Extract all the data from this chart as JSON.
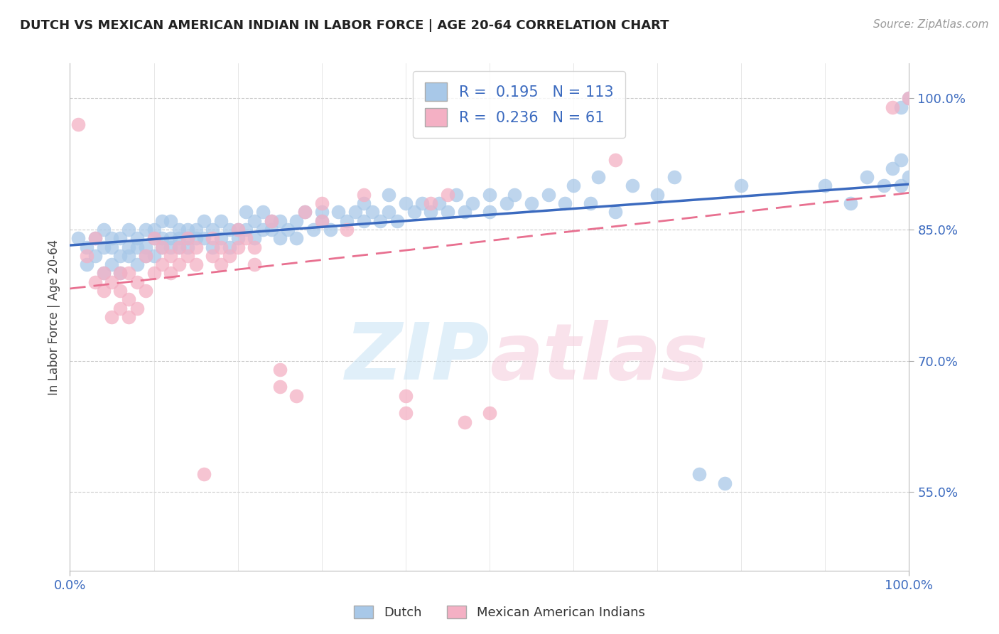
{
  "title": "DUTCH VS MEXICAN AMERICAN INDIAN IN LABOR FORCE | AGE 20-64 CORRELATION CHART",
  "source": "Source: ZipAtlas.com",
  "ylabel": "In Labor Force | Age 20-64",
  "xlim": [
    0.0,
    1.0
  ],
  "ylim": [
    0.46,
    1.04
  ],
  "yticks": [
    0.55,
    0.7,
    0.85,
    1.0
  ],
  "ytick_labels": [
    "55.0%",
    "70.0%",
    "85.0%",
    "100.0%"
  ],
  "xtick_labels": [
    "0.0%",
    "100.0%"
  ],
  "dutch_R": 0.195,
  "dutch_N": 113,
  "mexican_R": 0.236,
  "mexican_N": 61,
  "dutch_color": "#a8c8e8",
  "mexican_color": "#f4b0c4",
  "dutch_line_color": "#3b6abf",
  "mexican_line_color": "#e87090",
  "legend_R_color": "#3b6abf",
  "dutch_points": [
    [
      0.01,
      0.84
    ],
    [
      0.02,
      0.81
    ],
    [
      0.02,
      0.83
    ],
    [
      0.03,
      0.82
    ],
    [
      0.03,
      0.84
    ],
    [
      0.04,
      0.8
    ],
    [
      0.04,
      0.83
    ],
    [
      0.04,
      0.85
    ],
    [
      0.05,
      0.81
    ],
    [
      0.05,
      0.83
    ],
    [
      0.05,
      0.84
    ],
    [
      0.06,
      0.8
    ],
    [
      0.06,
      0.82
    ],
    [
      0.06,
      0.84
    ],
    [
      0.07,
      0.82
    ],
    [
      0.07,
      0.83
    ],
    [
      0.07,
      0.85
    ],
    [
      0.08,
      0.81
    ],
    [
      0.08,
      0.83
    ],
    [
      0.08,
      0.84
    ],
    [
      0.09,
      0.82
    ],
    [
      0.09,
      0.83
    ],
    [
      0.09,
      0.85
    ],
    [
      0.1,
      0.82
    ],
    [
      0.1,
      0.84
    ],
    [
      0.1,
      0.85
    ],
    [
      0.11,
      0.83
    ],
    [
      0.11,
      0.84
    ],
    [
      0.11,
      0.86
    ],
    [
      0.12,
      0.83
    ],
    [
      0.12,
      0.84
    ],
    [
      0.12,
      0.86
    ],
    [
      0.13,
      0.84
    ],
    [
      0.13,
      0.85
    ],
    [
      0.13,
      0.83
    ],
    [
      0.14,
      0.84
    ],
    [
      0.14,
      0.85
    ],
    [
      0.14,
      0.83
    ],
    [
      0.15,
      0.85
    ],
    [
      0.15,
      0.84
    ],
    [
      0.16,
      0.84
    ],
    [
      0.16,
      0.86
    ],
    [
      0.17,
      0.83
    ],
    [
      0.17,
      0.85
    ],
    [
      0.18,
      0.84
    ],
    [
      0.18,
      0.86
    ],
    [
      0.19,
      0.85
    ],
    [
      0.19,
      0.83
    ],
    [
      0.2,
      0.85
    ],
    [
      0.2,
      0.84
    ],
    [
      0.21,
      0.85
    ],
    [
      0.21,
      0.87
    ],
    [
      0.22,
      0.84
    ],
    [
      0.22,
      0.86
    ],
    [
      0.23,
      0.85
    ],
    [
      0.23,
      0.87
    ],
    [
      0.24,
      0.85
    ],
    [
      0.24,
      0.86
    ],
    [
      0.25,
      0.86
    ],
    [
      0.25,
      0.84
    ],
    [
      0.26,
      0.85
    ],
    [
      0.27,
      0.86
    ],
    [
      0.27,
      0.84
    ],
    [
      0.28,
      0.87
    ],
    [
      0.29,
      0.85
    ],
    [
      0.3,
      0.86
    ],
    [
      0.3,
      0.87
    ],
    [
      0.31,
      0.85
    ],
    [
      0.32,
      0.87
    ],
    [
      0.33,
      0.86
    ],
    [
      0.34,
      0.87
    ],
    [
      0.35,
      0.86
    ],
    [
      0.35,
      0.88
    ],
    [
      0.36,
      0.87
    ],
    [
      0.37,
      0.86
    ],
    [
      0.38,
      0.87
    ],
    [
      0.38,
      0.89
    ],
    [
      0.39,
      0.86
    ],
    [
      0.4,
      0.88
    ],
    [
      0.41,
      0.87
    ],
    [
      0.42,
      0.88
    ],
    [
      0.43,
      0.87
    ],
    [
      0.44,
      0.88
    ],
    [
      0.45,
      0.87
    ],
    [
      0.46,
      0.89
    ],
    [
      0.47,
      0.87
    ],
    [
      0.48,
      0.88
    ],
    [
      0.5,
      0.89
    ],
    [
      0.5,
      0.87
    ],
    [
      0.52,
      0.88
    ],
    [
      0.53,
      0.89
    ],
    [
      0.55,
      0.88
    ],
    [
      0.57,
      0.89
    ],
    [
      0.59,
      0.88
    ],
    [
      0.6,
      0.9
    ],
    [
      0.62,
      0.88
    ],
    [
      0.63,
      0.91
    ],
    [
      0.65,
      0.87
    ],
    [
      0.67,
      0.9
    ],
    [
      0.7,
      0.89
    ],
    [
      0.72,
      0.91
    ],
    [
      0.75,
      0.57
    ],
    [
      0.78,
      0.56
    ],
    [
      0.8,
      0.9
    ],
    [
      0.9,
      0.9
    ],
    [
      0.93,
      0.88
    ],
    [
      0.95,
      0.91
    ],
    [
      0.97,
      0.9
    ],
    [
      0.98,
      0.92
    ],
    [
      0.99,
      0.9
    ],
    [
      0.99,
      0.93
    ],
    [
      1.0,
      0.91
    ],
    [
      1.0,
      1.0
    ],
    [
      0.99,
      0.99
    ]
  ],
  "mexican_points": [
    [
      0.01,
      0.97
    ],
    [
      0.02,
      0.82
    ],
    [
      0.03,
      0.84
    ],
    [
      0.03,
      0.79
    ],
    [
      0.04,
      0.8
    ],
    [
      0.04,
      0.78
    ],
    [
      0.05,
      0.79
    ],
    [
      0.05,
      0.75
    ],
    [
      0.06,
      0.8
    ],
    [
      0.06,
      0.78
    ],
    [
      0.06,
      0.76
    ],
    [
      0.07,
      0.8
    ],
    [
      0.07,
      0.77
    ],
    [
      0.07,
      0.75
    ],
    [
      0.08,
      0.79
    ],
    [
      0.08,
      0.76
    ],
    [
      0.09,
      0.82
    ],
    [
      0.09,
      0.78
    ],
    [
      0.1,
      0.8
    ],
    [
      0.1,
      0.84
    ],
    [
      0.11,
      0.83
    ],
    [
      0.11,
      0.81
    ],
    [
      0.12,
      0.82
    ],
    [
      0.12,
      0.8
    ],
    [
      0.13,
      0.83
    ],
    [
      0.13,
      0.81
    ],
    [
      0.14,
      0.84
    ],
    [
      0.14,
      0.82
    ],
    [
      0.15,
      0.83
    ],
    [
      0.15,
      0.81
    ],
    [
      0.16,
      0.57
    ],
    [
      0.17,
      0.84
    ],
    [
      0.17,
      0.82
    ],
    [
      0.18,
      0.83
    ],
    [
      0.18,
      0.81
    ],
    [
      0.19,
      0.82
    ],
    [
      0.2,
      0.85
    ],
    [
      0.2,
      0.83
    ],
    [
      0.21,
      0.84
    ],
    [
      0.22,
      0.83
    ],
    [
      0.22,
      0.81
    ],
    [
      0.24,
      0.86
    ],
    [
      0.25,
      0.69
    ],
    [
      0.25,
      0.67
    ],
    [
      0.27,
      0.66
    ],
    [
      0.28,
      0.87
    ],
    [
      0.3,
      0.88
    ],
    [
      0.3,
      0.86
    ],
    [
      0.33,
      0.85
    ],
    [
      0.35,
      0.89
    ],
    [
      0.4,
      0.66
    ],
    [
      0.4,
      0.64
    ],
    [
      0.43,
      0.88
    ],
    [
      0.45,
      0.89
    ],
    [
      0.47,
      0.63
    ],
    [
      0.5,
      0.64
    ],
    [
      0.65,
      0.93
    ],
    [
      0.98,
      0.99
    ],
    [
      1.0,
      1.0
    ]
  ]
}
